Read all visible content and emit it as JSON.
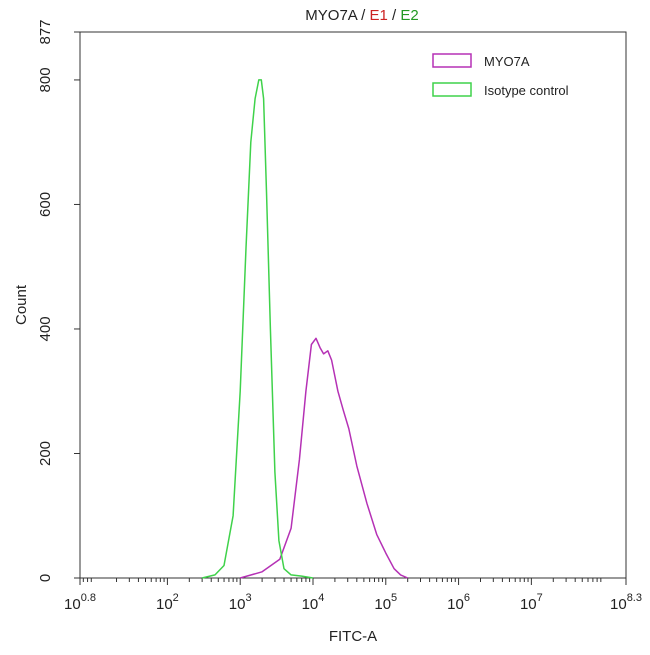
{
  "chart_data": {
    "type": "line",
    "title_parts": [
      {
        "text": "MYO7A",
        "color": "#222222"
      },
      {
        "text": " / ",
        "color": "#222222"
      },
      {
        "text": "E1",
        "color": "#cc2222"
      },
      {
        "text": " / ",
        "color": "#222222"
      },
      {
        "text": "E2",
        "color": "#229922"
      }
    ],
    "xlabel": "FITC-A",
    "ylabel": "Count",
    "x_scale": "log",
    "xlim": [
      6.3,
      199526000
    ],
    "ylim": [
      0,
      877
    ],
    "x_ticks": [
      {
        "base": "10",
        "exp": "0.8",
        "value": 6.3
      },
      {
        "base": "10",
        "exp": "2",
        "value": 100
      },
      {
        "base": "10",
        "exp": "3",
        "value": 1000
      },
      {
        "base": "10",
        "exp": "4",
        "value": 10000
      },
      {
        "base": "10",
        "exp": "5",
        "value": 100000
      },
      {
        "base": "10",
        "exp": "6",
        "value": 1000000
      },
      {
        "base": "10",
        "exp": "7",
        "value": 10000000
      },
      {
        "base": "10",
        "exp": "8.3",
        "value": 199526000
      }
    ],
    "y_ticks": [
      0,
      200,
      400,
      600,
      800,
      877
    ],
    "legend_position": "top-right",
    "series": [
      {
        "name": "MYO7A",
        "color": "#b531b5",
        "x": [
          1000,
          2000,
          3500,
          5000,
          6500,
          8000,
          9500,
          11000,
          12500,
          14000,
          16000,
          18000,
          22000,
          26000,
          31000,
          40000,
          55000,
          75000,
          100000,
          130000,
          160000,
          200000
        ],
        "y": [
          0,
          10,
          30,
          80,
          190,
          300,
          375,
          385,
          370,
          360,
          365,
          350,
          300,
          270,
          240,
          180,
          120,
          70,
          40,
          15,
          5,
          0
        ]
      },
      {
        "name": "Isotype control",
        "color": "#3fd24a",
        "x": [
          300,
          450,
          600,
          800,
          1000,
          1200,
          1400,
          1600,
          1800,
          1950,
          2100,
          2300,
          2600,
          3000,
          3400,
          4000,
          5000,
          7000,
          10000
        ],
        "y": [
          0,
          5,
          20,
          100,
          300,
          530,
          700,
          770,
          800,
          800,
          770,
          620,
          400,
          170,
          60,
          15,
          5,
          3,
          0
        ]
      }
    ]
  }
}
